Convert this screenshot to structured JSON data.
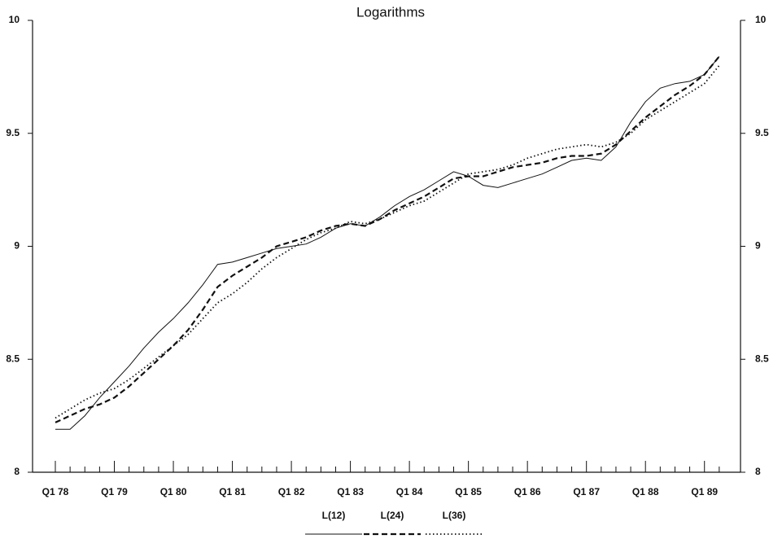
{
  "chart_data": {
    "type": "line",
    "title": "Logarithms",
    "categories": [
      "Q1 78",
      null,
      null,
      null,
      "Q1 79",
      null,
      null,
      null,
      "Q1 80",
      null,
      null,
      null,
      "Q1 81",
      null,
      null,
      null,
      "Q1 82",
      null,
      null,
      null,
      "Q1 83",
      null,
      null,
      null,
      "Q1 84",
      null,
      null,
      null,
      "Q1 85",
      null,
      null,
      null,
      "Q1 86",
      null,
      null,
      null,
      "Q1 87",
      null,
      null,
      null,
      "Q1 88",
      null,
      null,
      null,
      "Q1 89",
      null
    ],
    "series": [
      {
        "name": "L(12)",
        "color": "#111111",
        "style": "solid",
        "values": [
          8.19,
          8.19,
          8.25,
          8.33,
          8.4,
          8.47,
          8.55,
          8.62,
          8.68,
          8.75,
          8.83,
          8.92,
          8.93,
          8.95,
          8.97,
          8.99,
          9.0,
          9.01,
          9.04,
          9.08,
          9.1,
          9.09,
          9.13,
          9.18,
          9.22,
          9.25,
          9.29,
          9.33,
          9.31,
          9.27,
          9.26,
          9.28,
          9.3,
          9.32,
          9.35,
          9.38,
          9.39,
          9.38,
          9.44,
          9.55,
          9.64,
          9.7,
          9.72,
          9.73,
          9.76,
          9.84
        ]
      },
      {
        "name": "L(24)",
        "color": "#111111",
        "style": "dashed",
        "values": [
          8.22,
          8.25,
          8.28,
          8.3,
          8.33,
          8.38,
          8.44,
          8.5,
          8.56,
          8.63,
          8.72,
          8.82,
          8.87,
          8.91,
          8.95,
          9.0,
          9.02,
          9.04,
          9.07,
          9.09,
          9.1,
          9.09,
          9.12,
          9.16,
          9.19,
          9.22,
          9.26,
          9.3,
          9.31,
          9.31,
          9.33,
          9.35,
          9.36,
          9.37,
          9.39,
          9.4,
          9.4,
          9.41,
          9.45,
          9.51,
          9.57,
          9.62,
          9.67,
          9.71,
          9.76,
          9.84
        ]
      },
      {
        "name": "L(36)",
        "color": "#111111",
        "style": "dotted",
        "values": [
          8.24,
          8.28,
          8.32,
          8.35,
          8.37,
          8.41,
          8.46,
          8.51,
          8.56,
          8.61,
          8.68,
          8.75,
          8.79,
          8.84,
          8.9,
          8.95,
          8.99,
          9.03,
          9.06,
          9.08,
          9.11,
          9.1,
          9.12,
          9.15,
          9.18,
          9.2,
          9.24,
          9.28,
          9.32,
          9.33,
          9.34,
          9.36,
          9.39,
          9.41,
          9.43,
          9.44,
          9.45,
          9.44,
          9.46,
          9.5,
          9.56,
          9.6,
          9.64,
          9.68,
          9.72,
          9.8
        ]
      }
    ],
    "ylim": [
      8,
      10
    ],
    "yticks": [
      8,
      8.5,
      9,
      9.5,
      10
    ],
    "right_axis": true,
    "legend": "bottom"
  }
}
